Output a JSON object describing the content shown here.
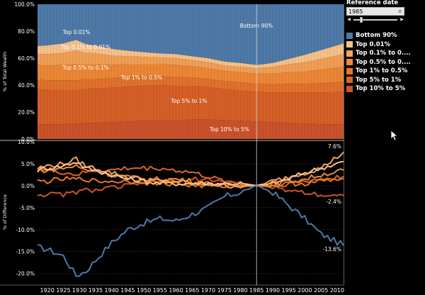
{
  "reference_control": {
    "title": "Reference date",
    "value": "1985",
    "clear_glyph": "✕",
    "prev_glyph": "◀",
    "next_glyph": "▶"
  },
  "legend": [
    {
      "label": "Bottom 90%",
      "color": "#4e79a7"
    },
    {
      "label": "Top 0.01%",
      "color": "#f6c28b"
    },
    {
      "label": "Top 0.1% to 0....",
      "color": "#f3a45d"
    },
    {
      "label": "Top 0.5% to 0....",
      "color": "#ee8a34"
    },
    {
      "label": "Top 1% to 0.5%",
      "color": "#e7762a"
    },
    {
      "label": "Top 5% to 1%",
      "color": "#db6427"
    },
    {
      "label": "Top 10% to 5%",
      "color": "#cc5427"
    }
  ],
  "band_labels": [
    "Bottom 90%",
    "Top 0.01%",
    "Top 0.1% to 0.01%",
    "Top 0.5% to 0.1%",
    "Top 1% to 0.5%",
    "Top 5% to 1%",
    "Top 10% to 5%"
  ],
  "end_labels": [
    "7.6%",
    "-2.4%",
    "-13.6%"
  ],
  "chart_data": [
    {
      "type": "area",
      "title": "",
      "ylabel": "% of Total Wealth",
      "ylim": [
        0,
        100
      ],
      "y_ticks": [
        "0.0%",
        "20.0%",
        "40.0%",
        "60.0%",
        "80.0%",
        "100.0%"
      ],
      "y_tick_values": [
        0,
        20,
        40,
        60,
        80,
        100
      ],
      "x": [
        1917,
        1920,
        1925,
        1929,
        1932,
        1935,
        1940,
        1945,
        1950,
        1955,
        1960,
        1965,
        1970,
        1975,
        1980,
        1985,
        1990,
        1995,
        2000,
        2005,
        2012
      ],
      "series": [
        {
          "name": "Top 10% to 5%",
          "color": "#c9522a",
          "values": [
            11,
            11,
            11,
            11.5,
            12,
            12,
            12.5,
            13,
            13.5,
            14,
            14,
            14.5,
            14.5,
            14,
            13.5,
            13,
            12.5,
            12,
            11.5,
            11,
            11
          ]
        },
        {
          "name": "Top 5% to 1%",
          "color": "#d55f27",
          "values": [
            26,
            25.5,
            25,
            24.5,
            25,
            25.5,
            25.5,
            26,
            26,
            26,
            25.5,
            25,
            24,
            23,
            22.5,
            22,
            22,
            22.5,
            23,
            23.5,
            24
          ]
        },
        {
          "name": "Top 1% to 0.5%",
          "color": "#e0712c",
          "values": [
            7,
            7,
            7.5,
            7.5,
            7.5,
            7,
            7,
            7,
            7,
            6.5,
            6.5,
            6,
            6,
            6,
            6,
            6,
            6,
            6.5,
            6.5,
            7,
            7.5
          ]
        },
        {
          "name": "Top 0.5% to 0.1%",
          "color": "#eb8636",
          "values": [
            11,
            11,
            11.5,
            12,
            11,
            11,
            10,
            9.5,
            9,
            9,
            9,
            8.5,
            8,
            7.5,
            7.5,
            7.5,
            8,
            8.5,
            9,
            10,
            11
          ]
        },
        {
          "name": "Top 0.1% to 0.01%",
          "color": "#f09e55",
          "values": [
            8,
            8.5,
            9,
            10,
            8.5,
            8,
            7,
            6,
            5.5,
            5,
            5,
            4.5,
            4.5,
            4,
            4,
            4,
            5,
            6,
            7,
            8,
            9.5
          ]
        },
        {
          "name": "Top 0.01%",
          "color": "#f5c089",
          "values": [
            6,
            6.5,
            7,
            8,
            6.5,
            6,
            5,
            4,
            3.5,
            3,
            3,
            3,
            3,
            3,
            3,
            2.5,
            3,
            4,
            5.5,
            6.5,
            8
          ]
        },
        {
          "name": "Bottom 90%",
          "color": "#4e79a7",
          "values": [
            31,
            30.5,
            29,
            26.5,
            29.5,
            30.5,
            33,
            34.5,
            35.5,
            36.5,
            37,
            38.5,
            40,
            42.5,
            43.5,
            45,
            43.5,
            40.5,
            37.5,
            34,
            29
          ]
        }
      ]
    },
    {
      "type": "line",
      "title": "",
      "ylabel": "% of Difference",
      "ylim": [
        -22,
        10
      ],
      "y_ticks": [
        "-20.0%",
        "-15.0%",
        "-10.0%",
        "-5.0%",
        "0.0%",
        "5.0%",
        "10.0%"
      ],
      "y_tick_values": [
        -20,
        -15,
        -10,
        -5,
        0,
        5,
        10
      ],
      "x_ticks": [
        "1920",
        "1925",
        "1930",
        "1935",
        "1940",
        "1945",
        "1950",
        "1955",
        "1960",
        "1965",
        "1970",
        "1975",
        "1980",
        "1985",
        "1990",
        "1995",
        "2000",
        "2005",
        "2010"
      ],
      "x_tick_values": [
        1920,
        1925,
        1930,
        1935,
        1940,
        1945,
        1950,
        1955,
        1960,
        1965,
        1970,
        1975,
        1980,
        1985,
        1990,
        1995,
        2000,
        2005,
        2010
      ],
      "x_range": [
        1917,
        2012
      ],
      "reference_x": 1985,
      "x": [
        1917,
        1920,
        1925,
        1929,
        1932,
        1935,
        1940,
        1945,
        1950,
        1955,
        1960,
        1965,
        1970,
        1975,
        1980,
        1985,
        1990,
        1995,
        2000,
        2005,
        2012
      ],
      "series": [
        {
          "name": "Bottom 90%",
          "color": "#4e79a7",
          "values": [
            -14,
            -14.5,
            -16,
            -20.5,
            -19.5,
            -17,
            -13,
            -10,
            -8.5,
            -7.5,
            -8,
            -6.5,
            -5,
            -2.5,
            -1.5,
            0,
            -1.5,
            -4.5,
            -7.5,
            -11,
            -13.6
          ]
        },
        {
          "name": "Top 0.01%",
          "color": "#f6c28b",
          "values": [
            3.5,
            4,
            4.5,
            5.5,
            4,
            3.5,
            2.5,
            1.5,
            1,
            0.5,
            0.5,
            0.5,
            0.5,
            0.5,
            0.5,
            0,
            0.5,
            1.5,
            3,
            4,
            5.5
          ]
        },
        {
          "name": "Top 0.1% to 0.01%",
          "color": "#f3a45d",
          "values": [
            4,
            4.5,
            5,
            6,
            4.5,
            4,
            3,
            2,
            1.5,
            1,
            1,
            0.5,
            0.5,
            0,
            0,
            0,
            1,
            2,
            3,
            4,
            7.6
          ]
        },
        {
          "name": "Top 0.5% to 0.1%",
          "color": "#ee8a34",
          "values": [
            3.5,
            3.5,
            4,
            4.5,
            3.5,
            3.5,
            2.5,
            2,
            1.5,
            1.5,
            1.5,
            1,
            0.5,
            0,
            0,
            0,
            0.5,
            1,
            1.5,
            2.5,
            3.5
          ]
        },
        {
          "name": "Top 1% to 0.5%",
          "color": "#e7762a",
          "values": [
            1,
            1,
            1.5,
            1.5,
            1.5,
            1,
            1,
            1,
            1,
            0.5,
            0.5,
            0,
            0,
            0,
            0,
            0,
            0,
            0.5,
            0.5,
            1,
            1.5
          ]
        },
        {
          "name": "Top 5% to 1%",
          "color": "#db6427",
          "values": [
            4,
            3.5,
            3,
            2.5,
            3,
            3.5,
            3.5,
            4,
            4,
            4,
            3.5,
            3,
            2,
            1,
            0.5,
            0,
            0,
            0.5,
            1,
            1.5,
            2
          ]
        },
        {
          "name": "Top 10% to 5%",
          "color": "#cc5427",
          "values": [
            -2,
            -2,
            -2,
            -1.5,
            -1,
            -1,
            -0.5,
            0,
            0.5,
            1,
            1,
            1.5,
            1.5,
            1,
            0.5,
            0,
            -0.5,
            -1,
            -1.5,
            -2,
            -2.4
          ]
        }
      ]
    }
  ]
}
